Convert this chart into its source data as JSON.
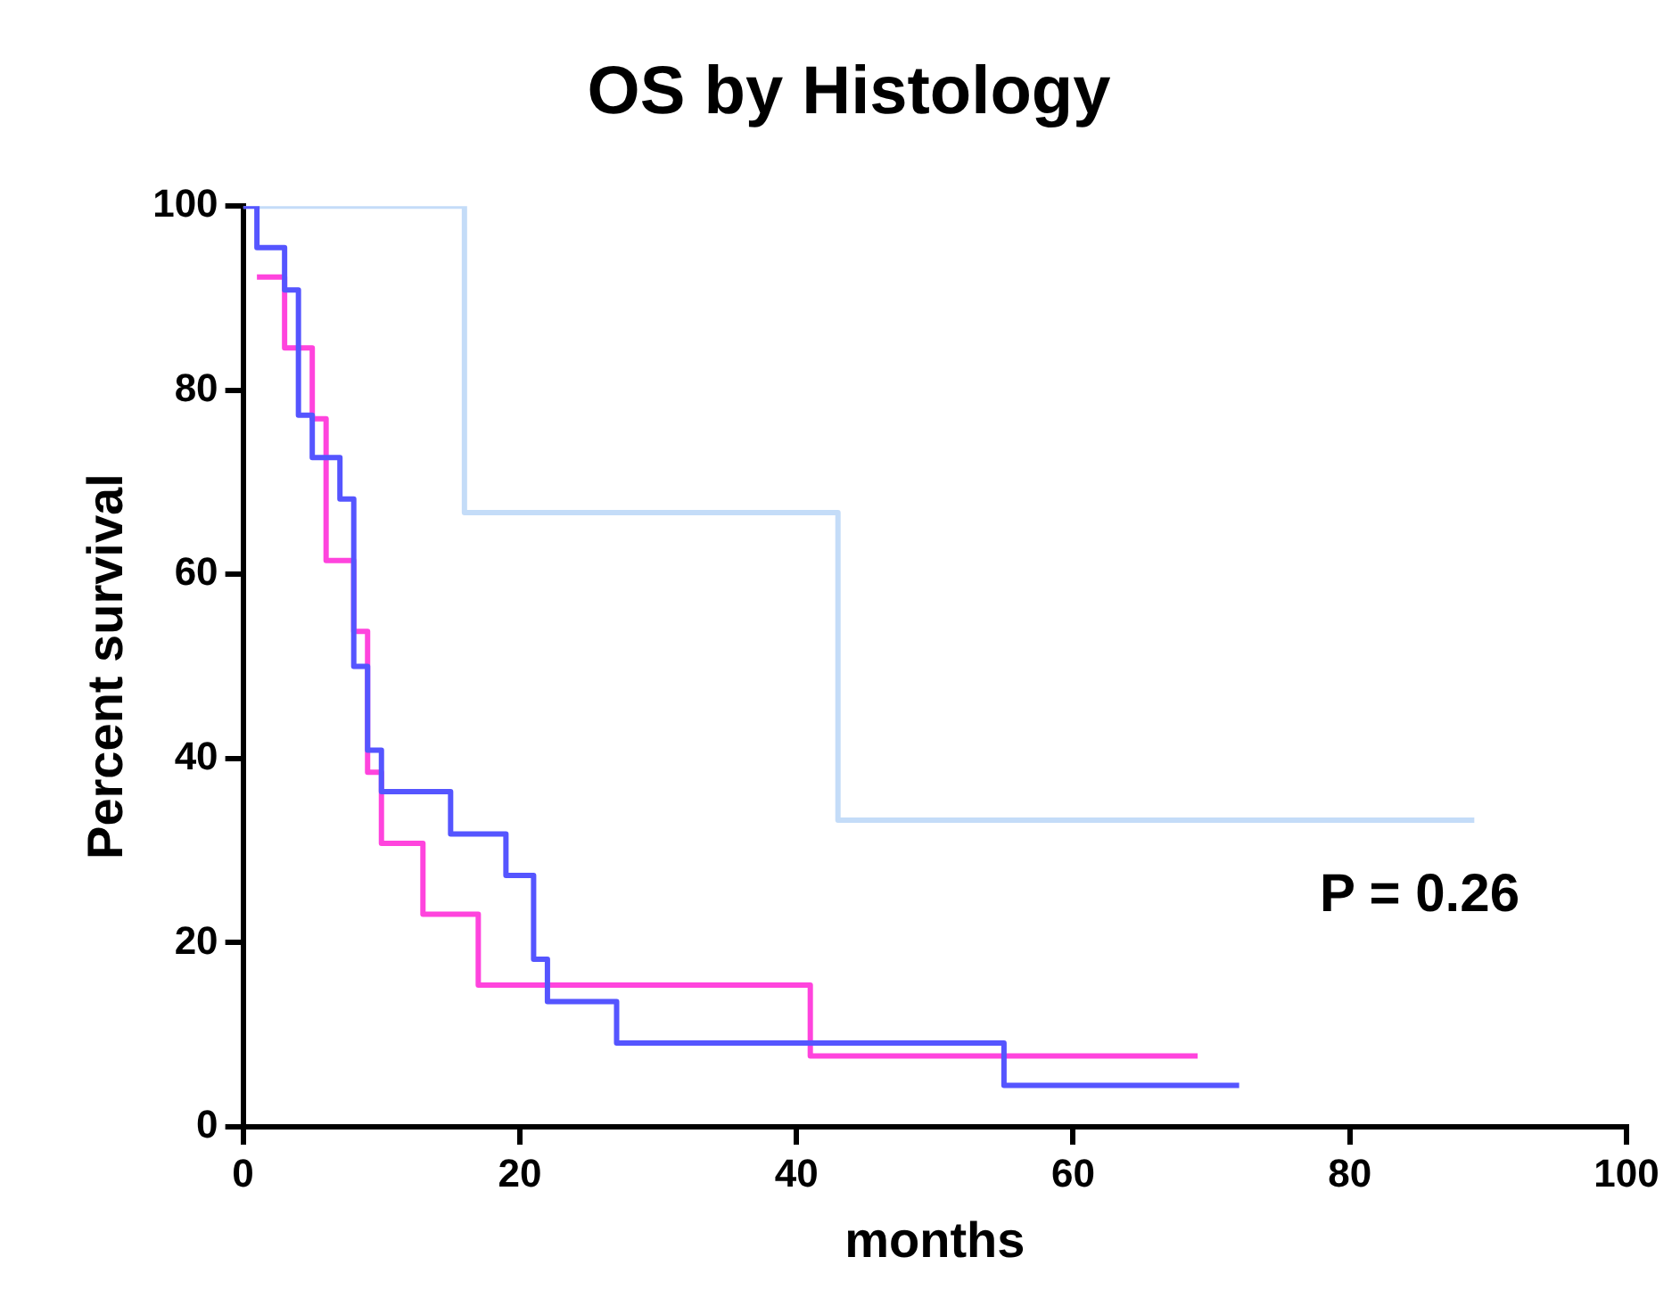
{
  "chart_data": {
    "type": "step",
    "title": "OS by Histology",
    "xlabel": "months",
    "ylabel": "Percent survival",
    "xlim": [
      0,
      100
    ],
    "xticks": [
      0,
      20,
      40,
      60,
      80,
      100
    ],
    "ylim": [
      0,
      100
    ],
    "yticks": [
      0,
      20,
      40,
      60,
      80,
      100
    ],
    "grid": false,
    "legend": false,
    "marker": "none",
    "line_style": "solid",
    "annotations": [
      "P = 0.26"
    ],
    "series": [
      {
        "color": "#c4dcf8",
        "x": [
          0,
          16,
          43,
          89
        ],
        "values": [
          100,
          66.7,
          33.3,
          33.3
        ]
      },
      {
        "color": "#ff44dd",
        "x": [
          1,
          3,
          5,
          6,
          8,
          9,
          10,
          13,
          17,
          41,
          69
        ],
        "values": [
          92.3,
          84.6,
          76.9,
          61.5,
          53.8,
          38.5,
          30.8,
          23.1,
          15.4,
          7.7,
          7.7
        ]
      },
      {
        "color": "#5555ff",
        "x": [
          0,
          1,
          3,
          4,
          5,
          7,
          8,
          9,
          10,
          15,
          19,
          21,
          22,
          27,
          55,
          72
        ],
        "values": [
          100,
          95.5,
          90.9,
          77.3,
          72.7,
          68.2,
          50,
          40.9,
          36.4,
          31.8,
          27.3,
          18.2,
          13.6,
          9.1,
          4.5,
          4.5
        ]
      }
    ]
  }
}
